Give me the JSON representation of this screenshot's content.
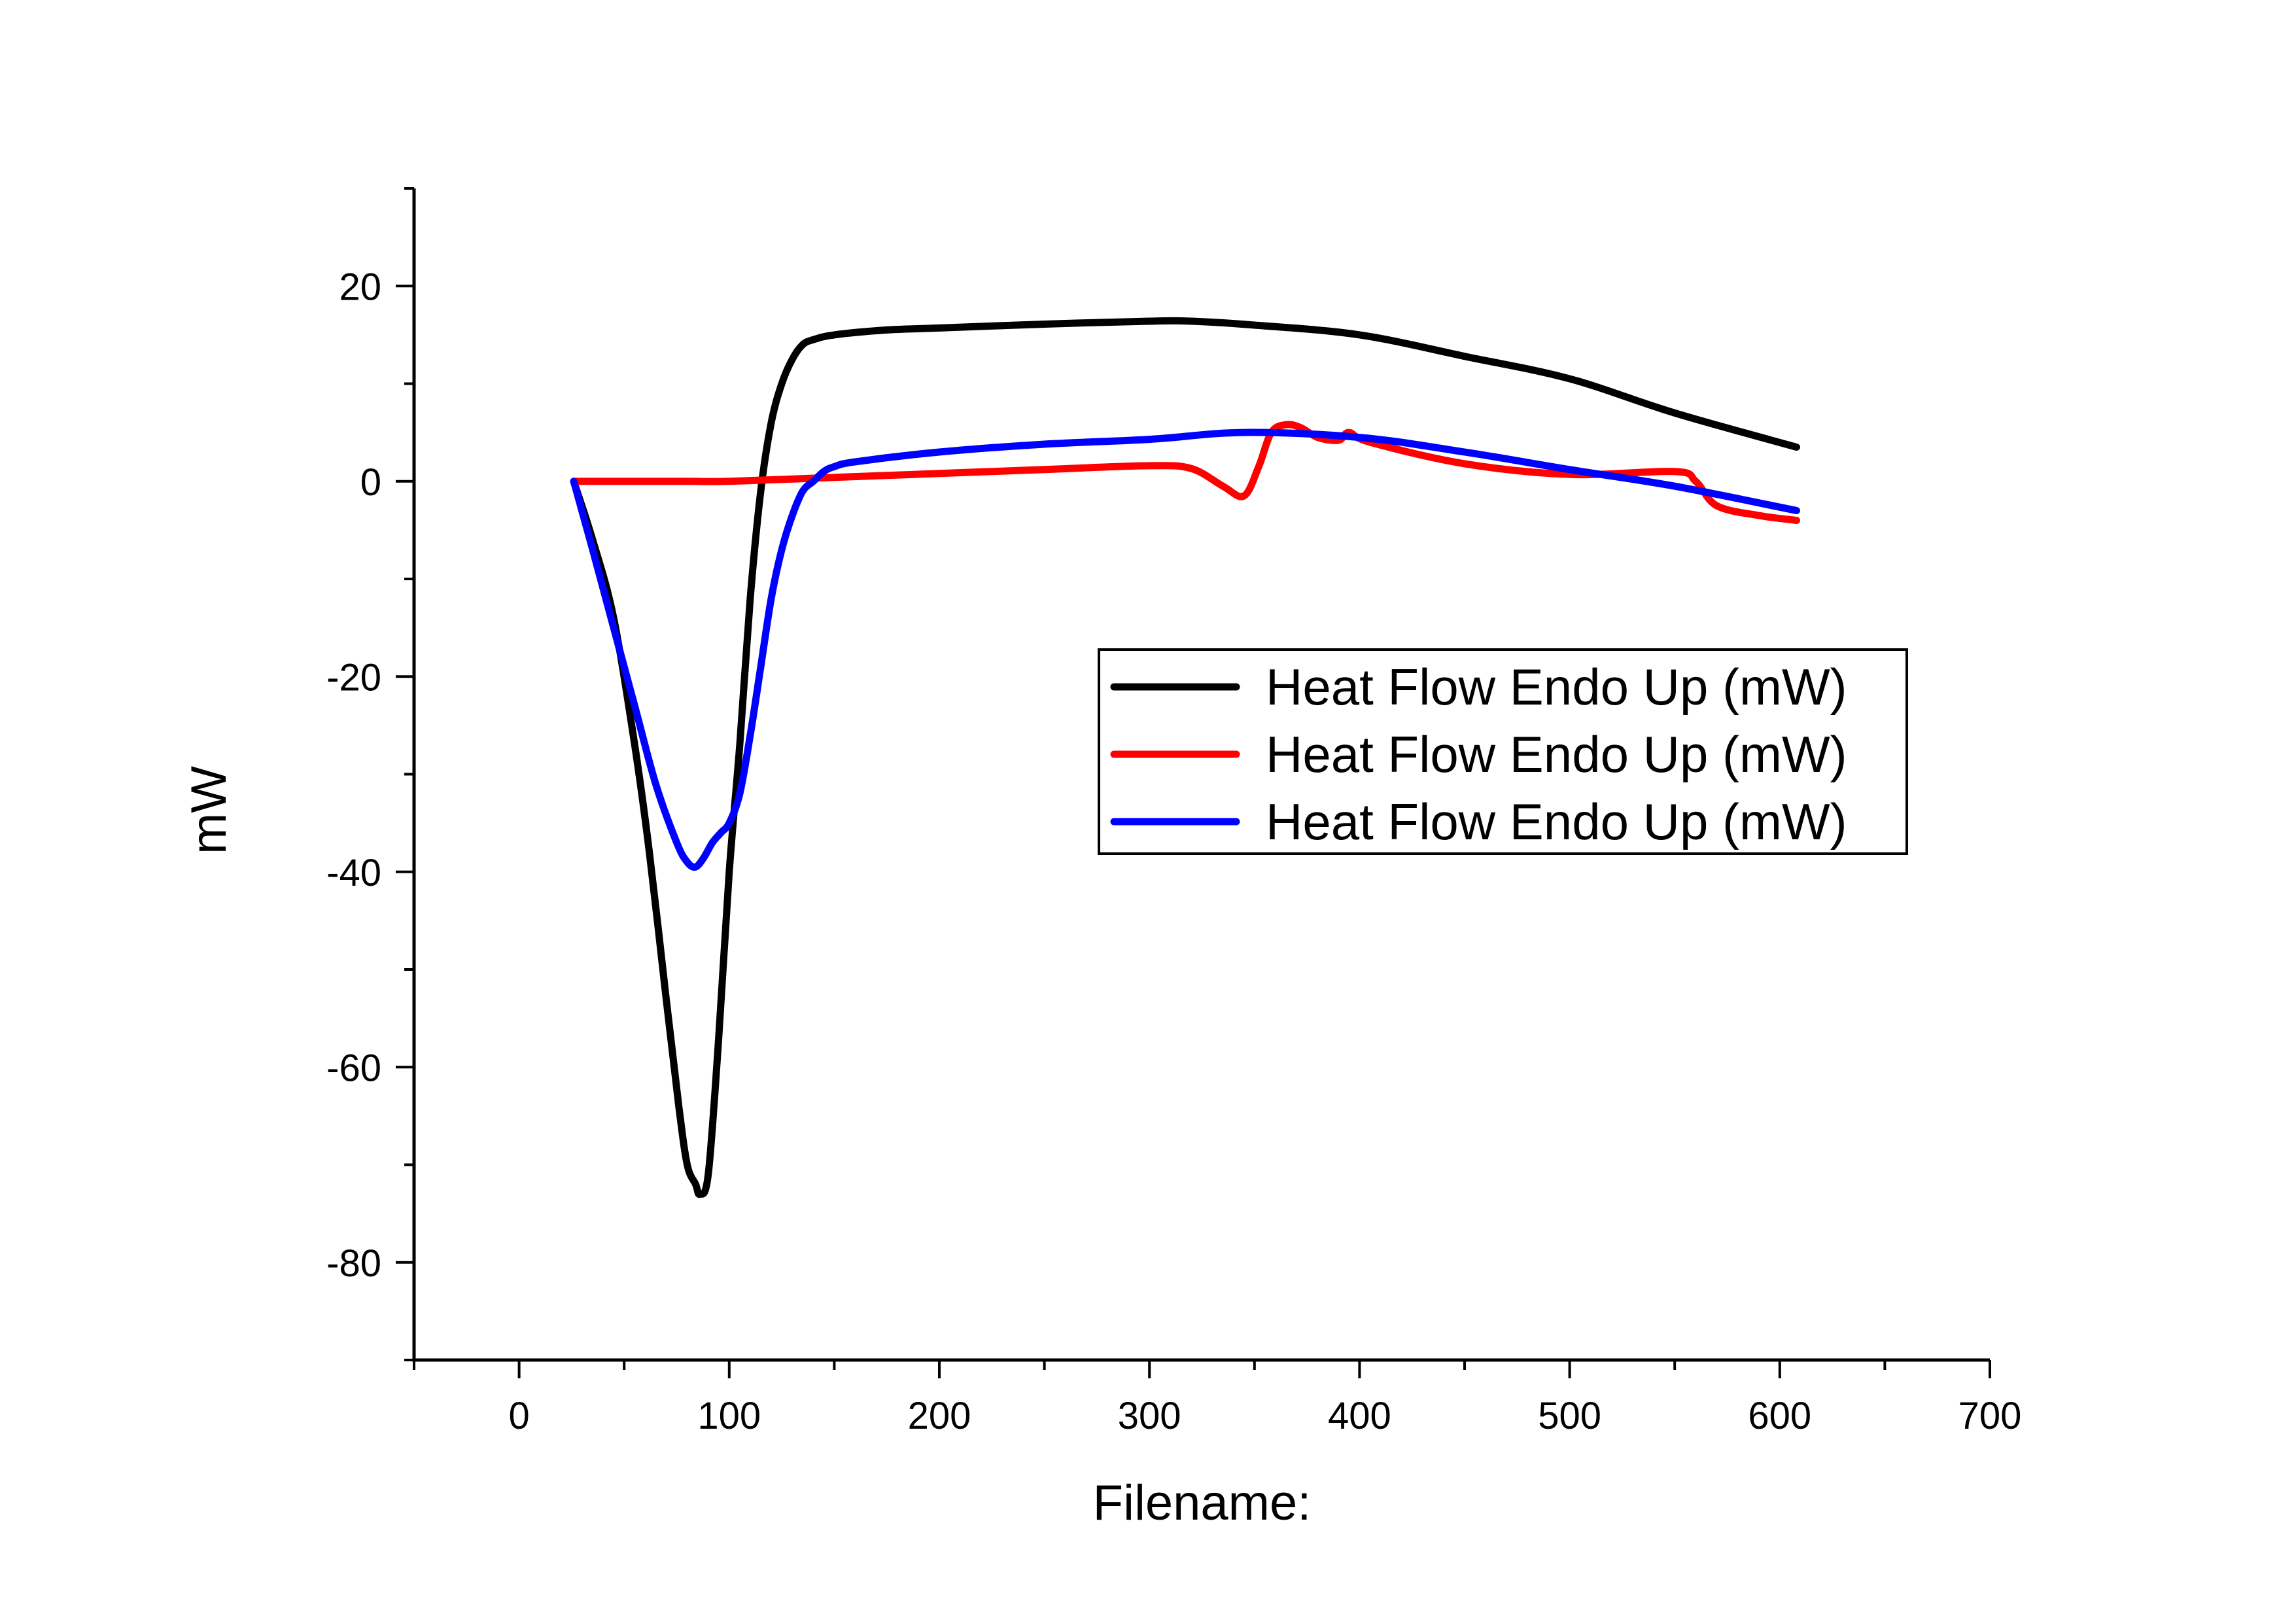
{
  "chart_data": {
    "type": "line",
    "title": "",
    "xlabel": "Filename:",
    "ylabel": "mW",
    "xlim": [
      -50,
      700
    ],
    "ylim": [
      -90,
      30
    ],
    "x_ticks": [
      0,
      100,
      200,
      300,
      400,
      500,
      600,
      700
    ],
    "y_ticks": [
      -80,
      -60,
      -40,
      -20,
      0,
      20
    ],
    "x_minor_step": 50,
    "y_minor_step": 10,
    "grid": false,
    "legend_position": "center-right",
    "series": [
      {
        "name": "Heat Flow Endo Up (mW)",
        "color": "#000000",
        "x": [
          26,
          35,
          45,
          55,
          62,
          70,
          76,
          80,
          84,
          86,
          90,
          95,
          100,
          105,
          110,
          115,
          120,
          125,
          130,
          135,
          140,
          150,
          175,
          200,
          250,
          300,
          320,
          350,
          400,
          450,
          500,
          550,
          608
        ],
        "y": [
          0,
          -6,
          -14,
          -27,
          -38,
          -53,
          -64,
          -70,
          -72,
          -73,
          -71,
          -57,
          -40,
          -27,
          -12,
          -1,
          6,
          10,
          12.5,
          14,
          14.5,
          15,
          15.5,
          15.7,
          16.1,
          16.4,
          16.4,
          16,
          15,
          12.8,
          10.5,
          7,
          3.5
        ]
      },
      {
        "name": "Heat Flow Endo Up (mW)",
        "color": "#ff0000",
        "x": [
          26,
          50,
          80,
          100,
          150,
          200,
          250,
          300,
          320,
          335,
          345,
          352,
          358,
          365,
          372,
          380,
          390,
          395,
          405,
          450,
          500,
          550,
          560,
          570,
          590,
          608
        ],
        "y": [
          0,
          0,
          0,
          0,
          0.4,
          0.8,
          1.2,
          1.6,
          1.3,
          -0.5,
          -1.5,
          1.5,
          5,
          5.8,
          5.5,
          4.5,
          4.2,
          5,
          4,
          1.8,
          0.7,
          1,
          0,
          -2.5,
          -3.5,
          -4
        ]
      },
      {
        "name": "Heat Flow Endo Up (mW)",
        "color": "#0000ff",
        "x": [
          26,
          35,
          45,
          55,
          65,
          75,
          80,
          84,
          88,
          92,
          96,
          100,
          105,
          110,
          115,
          120,
          125,
          130,
          135,
          140,
          145,
          150,
          160,
          200,
          250,
          300,
          345,
          400,
          450,
          500,
          550,
          608
        ],
        "y": [
          0,
          -7,
          -15,
          -23,
          -31,
          -37,
          -39,
          -39.5,
          -38.5,
          -37,
          -36,
          -35,
          -32,
          -26,
          -19,
          -12,
          -7,
          -3.5,
          -1,
          0,
          1,
          1.5,
          2,
          3,
          3.8,
          4.3,
          5,
          4.5,
          3,
          1.2,
          -0.5,
          -3
        ]
      }
    ]
  }
}
